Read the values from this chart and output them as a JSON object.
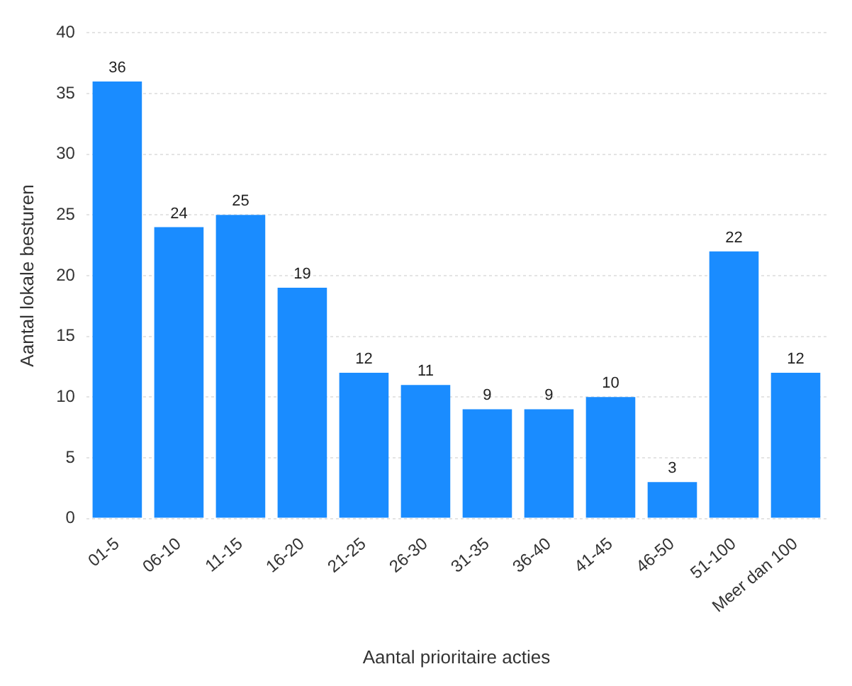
{
  "chart_data": {
    "type": "bar",
    "xlabel": "Aantal prioritaire acties",
    "ylabel": "Aantal lokale besturen",
    "categories": [
      "01-5",
      "06-10",
      "11-15",
      "16-20",
      "21-25",
      "26-30",
      "31-35",
      "36-40",
      "41-45",
      "46-50",
      "51-100",
      "Meer dan 100"
    ],
    "values": [
      36,
      24,
      25,
      19,
      12,
      11,
      9,
      9,
      10,
      3,
      22,
      12
    ],
    "color": "#1a8cff",
    "ylim": [
      0,
      40
    ],
    "yticks": [
      0,
      5,
      10,
      15,
      20,
      25,
      30,
      35,
      40
    ],
    "grid": "y",
    "data_labels": true
  }
}
